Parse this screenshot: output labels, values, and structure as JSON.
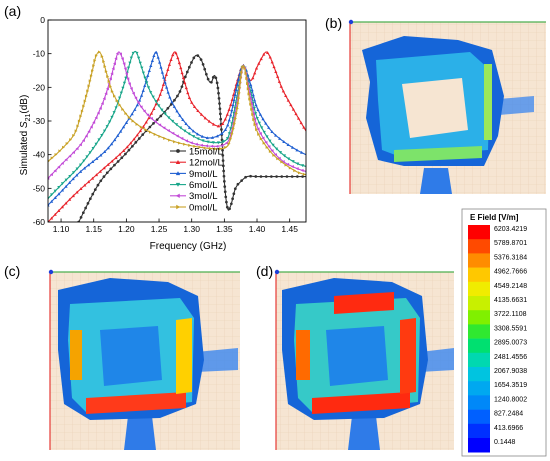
{
  "panels": {
    "a": "(a)",
    "b": "(b)",
    "c": "(c)",
    "d": "(d)"
  },
  "chart_data": {
    "type": "line",
    "title": "",
    "xlabel": "Frequency (GHz)",
    "ylabel_main": "Simulated ",
    "ylabel_sym": "S",
    "ylabel_sub": "21",
    "ylabel_unit": "(dB)",
    "xlim": [
      1.08,
      1.475
    ],
    "ylim": [
      -60,
      0
    ],
    "xticks": [
      1.1,
      1.15,
      1.2,
      1.25,
      1.3,
      1.35,
      1.4,
      1.45
    ],
    "xtick_labels": [
      "1.10",
      "1.15",
      "1.20",
      "1.25",
      "1.30",
      "1.35",
      "1.40",
      "1.45"
    ],
    "yticks": [
      -60,
      -50,
      -40,
      -30,
      -20,
      -10,
      0
    ],
    "ytick_labels": [
      "-60",
      "-50",
      "-40",
      "-30",
      "-20",
      "-10",
      "0"
    ],
    "grid": false,
    "legend_position": "center-right",
    "common_peak": {
      "x": 1.379,
      "y": -13.5
    },
    "series": [
      {
        "name": "15mol/L",
        "color": "#333333",
        "marker": "circle",
        "points": [
          [
            1.127,
            -60
          ],
          [
            1.16,
            -48
          ],
          [
            1.2,
            -39.5
          ],
          [
            1.23,
            -33
          ],
          [
            1.26,
            -27
          ],
          [
            1.28,
            -22
          ],
          [
            1.29,
            -17
          ],
          [
            1.3,
            -12.5
          ],
          [
            1.307,
            -10.5
          ],
          [
            1.315,
            -12
          ],
          [
            1.325,
            -17.5
          ],
          [
            1.33,
            -18.5
          ],
          [
            1.335,
            -16.5
          ],
          [
            1.34,
            -20
          ],
          [
            1.345,
            -31
          ],
          [
            1.35,
            -48
          ],
          [
            1.355,
            -56
          ],
          [
            1.36,
            -55
          ],
          [
            1.367,
            -50
          ],
          [
            1.375,
            -48
          ],
          [
            1.385,
            -46.5
          ],
          [
            1.4,
            -46.5
          ],
          [
            1.43,
            -46.5
          ],
          [
            1.475,
            -46.5
          ]
        ]
      },
      {
        "name": "12mol/L",
        "color": "#e8232b",
        "marker": "triangle-up",
        "points": [
          [
            1.08,
            -60
          ],
          [
            1.12,
            -52
          ],
          [
            1.16,
            -45
          ],
          [
            1.2,
            -38
          ],
          [
            1.23,
            -30.5
          ],
          [
            1.25,
            -23
          ],
          [
            1.26,
            -17
          ],
          [
            1.268,
            -12
          ],
          [
            1.274,
            -9.5
          ],
          [
            1.28,
            -12
          ],
          [
            1.29,
            -19
          ],
          [
            1.3,
            -24.5
          ],
          [
            1.32,
            -29
          ],
          [
            1.34,
            -31.5
          ],
          [
            1.35,
            -30
          ],
          [
            1.36,
            -25
          ],
          [
            1.37,
            -18
          ],
          [
            1.379,
            -13.5
          ],
          [
            1.39,
            -18
          ],
          [
            1.4,
            -14
          ],
          [
            1.408,
            -11
          ],
          [
            1.414,
            -9.5
          ],
          [
            1.42,
            -11
          ],
          [
            1.43,
            -16
          ],
          [
            1.44,
            -21
          ],
          [
            1.46,
            -28
          ],
          [
            1.475,
            -33
          ]
        ]
      },
      {
        "name": "9mol/L",
        "color": "#1f5fd1",
        "marker": "triangle-up",
        "points": [
          [
            1.08,
            -55
          ],
          [
            1.1,
            -51
          ],
          [
            1.13,
            -45
          ],
          [
            1.17,
            -38.5
          ],
          [
            1.2,
            -30.5
          ],
          [
            1.22,
            -24
          ],
          [
            1.232,
            -17
          ],
          [
            1.24,
            -12
          ],
          [
            1.245,
            -9.5
          ],
          [
            1.25,
            -12
          ],
          [
            1.26,
            -19
          ],
          [
            1.27,
            -24.5
          ],
          [
            1.29,
            -30.5
          ],
          [
            1.31,
            -34
          ],
          [
            1.33,
            -35
          ],
          [
            1.35,
            -33
          ],
          [
            1.36,
            -28
          ],
          [
            1.37,
            -19
          ],
          [
            1.379,
            -13.5
          ],
          [
            1.39,
            -19
          ],
          [
            1.4,
            -26
          ],
          [
            1.42,
            -32.5
          ],
          [
            1.44,
            -36
          ],
          [
            1.46,
            -38.5
          ],
          [
            1.475,
            -40
          ]
        ]
      },
      {
        "name": "6mol/L",
        "color": "#17a589",
        "marker": "triangle-down",
        "points": [
          [
            1.08,
            -53
          ],
          [
            1.1,
            -49
          ],
          [
            1.13,
            -43
          ],
          [
            1.16,
            -35
          ],
          [
            1.18,
            -28
          ],
          [
            1.195,
            -20
          ],
          [
            1.205,
            -13
          ],
          [
            1.21,
            -10
          ],
          [
            1.215,
            -9.5
          ],
          [
            1.22,
            -12
          ],
          [
            1.23,
            -18
          ],
          [
            1.24,
            -22.5
          ],
          [
            1.26,
            -28
          ],
          [
            1.29,
            -33
          ],
          [
            1.32,
            -36
          ],
          [
            1.35,
            -36
          ],
          [
            1.36,
            -32
          ],
          [
            1.37,
            -22
          ],
          [
            1.379,
            -13.5
          ],
          [
            1.39,
            -21
          ],
          [
            1.4,
            -29
          ],
          [
            1.42,
            -36
          ],
          [
            1.44,
            -40
          ],
          [
            1.46,
            -42.5
          ],
          [
            1.475,
            -43.5
          ]
        ]
      },
      {
        "name": "3mol/L",
        "color": "#c24ad7",
        "marker": "triangle-left",
        "points": [
          [
            1.08,
            -47
          ],
          [
            1.1,
            -43
          ],
          [
            1.13,
            -37
          ],
          [
            1.15,
            -30.5
          ],
          [
            1.165,
            -24
          ],
          [
            1.175,
            -18
          ],
          [
            1.182,
            -13
          ],
          [
            1.188,
            -9.5
          ],
          [
            1.195,
            -12
          ],
          [
            1.205,
            -19
          ],
          [
            1.22,
            -25
          ],
          [
            1.24,
            -29.5
          ],
          [
            1.27,
            -33.5
          ],
          [
            1.3,
            -36.5
          ],
          [
            1.33,
            -37.5
          ],
          [
            1.35,
            -37
          ],
          [
            1.36,
            -34
          ],
          [
            1.37,
            -24
          ],
          [
            1.379,
            -13.5
          ],
          [
            1.39,
            -23
          ],
          [
            1.4,
            -31.5
          ],
          [
            1.42,
            -38
          ],
          [
            1.44,
            -42
          ],
          [
            1.46,
            -44
          ],
          [
            1.475,
            -45
          ]
        ]
      },
      {
        "name": "0mol/L",
        "color": "#c9a227",
        "marker": "triangle-right",
        "points": [
          [
            1.08,
            -42
          ],
          [
            1.1,
            -38.5
          ],
          [
            1.12,
            -34
          ],
          [
            1.13,
            -28.5
          ],
          [
            1.14,
            -21.5
          ],
          [
            1.148,
            -15
          ],
          [
            1.153,
            -11
          ],
          [
            1.158,
            -9.5
          ],
          [
            1.163,
            -11
          ],
          [
            1.17,
            -16
          ],
          [
            1.18,
            -22
          ],
          [
            1.2,
            -28
          ],
          [
            1.22,
            -31.5
          ],
          [
            1.25,
            -34.5
          ],
          [
            1.28,
            -36.5
          ],
          [
            1.32,
            -38
          ],
          [
            1.35,
            -38
          ],
          [
            1.36,
            -35
          ],
          [
            1.37,
            -26
          ],
          [
            1.379,
            -13.5
          ],
          [
            1.39,
            -25
          ],
          [
            1.4,
            -33
          ],
          [
            1.42,
            -39
          ],
          [
            1.44,
            -42.5
          ],
          [
            1.46,
            -45
          ],
          [
            1.475,
            -46
          ]
        ]
      }
    ]
  },
  "colorbar": {
    "title": "E Field [V/m]",
    "labels": [
      "6203.4219",
      "5789.8701",
      "5376.3184",
      "4962.7666",
      "4549.2148",
      "4135.6631",
      "3722.1108",
      "3308.5591",
      "2895.0073",
      "2481.4556",
      "2067.9038",
      "1654.3519",
      "1240.8002",
      "827.2484",
      "413.6966",
      "0.1448"
    ],
    "colors": [
      "#ff0000",
      "#ff4a00",
      "#ff8c00",
      "#ffc800",
      "#f0ec00",
      "#c8f000",
      "#80f000",
      "#30e830",
      "#00e070",
      "#00d8b0",
      "#00c4e0",
      "#00a8f0",
      "#0088f8",
      "#0060ff",
      "#0030ff",
      "#0000ff"
    ]
  }
}
